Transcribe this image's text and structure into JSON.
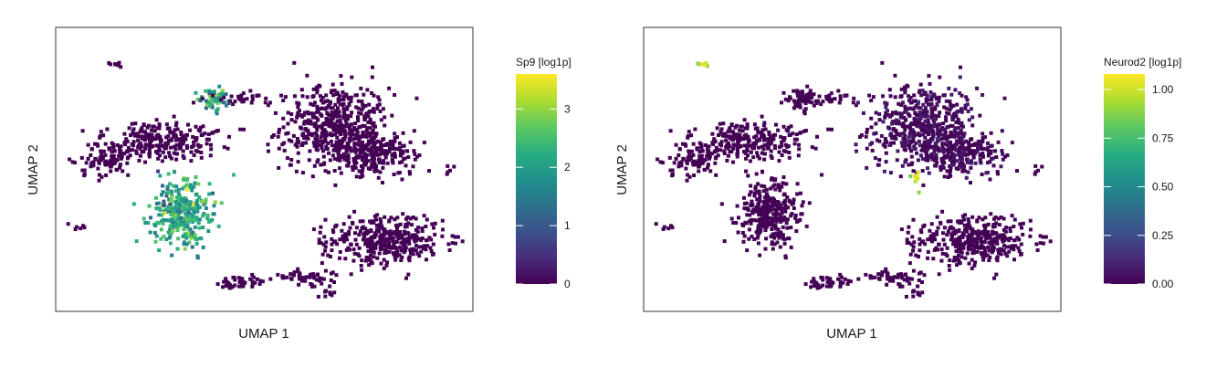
{
  "panels": [
    {
      "x_label": "UMAP 1",
      "y_label": "UMAP 2",
      "colorbar": {
        "title": "Sp9 [log1p]",
        "min": 0,
        "max": 3.6,
        "ticks": [
          {
            "value": 0,
            "label": "0"
          },
          {
            "value": 1,
            "label": "1"
          },
          {
            "value": 2,
            "label": "2"
          },
          {
            "value": 3,
            "label": "3"
          }
        ],
        "colormap": "viridis"
      }
    },
    {
      "x_label": "UMAP 1",
      "y_label": "UMAP 2",
      "colorbar": {
        "title": "Neurod2 [log1p]",
        "min": 0,
        "max": 1.08,
        "ticks": [
          {
            "value": 0,
            "label": "0.00"
          },
          {
            "value": 0.25,
            "label": "0.25"
          },
          {
            "value": 0.5,
            "label": "0.50"
          },
          {
            "value": 0.75,
            "label": "0.75"
          },
          {
            "value": 1,
            "label": "1.00"
          }
        ],
        "colormap": "viridis"
      }
    }
  ],
  "chart_data": [
    {
      "type": "scatter",
      "xlabel": "UMAP 1",
      "ylabel": "UMAP 2",
      "xlim": [
        0,
        100
      ],
      "ylim": [
        0,
        100
      ],
      "grid": false,
      "color_variable": "Sp9 [log1p]",
      "color_range": [
        0,
        3.6
      ],
      "clusters": [
        {
          "x": 67,
          "y": 65,
          "sx": 6.5,
          "sy": 7.5,
          "n": 520,
          "value": 0.0,
          "spread": 0.02
        },
        {
          "x": 77,
          "y": 55,
          "sx": 5.5,
          "sy": 3.5,
          "n": 200,
          "value": 0.0,
          "spread": 0.02
        },
        {
          "x": 79,
          "y": 25,
          "sx": 7.0,
          "sy": 4.5,
          "n": 360,
          "value": 0.0,
          "spread": 0.02
        },
        {
          "x": 25,
          "y": 60,
          "sx": 7.0,
          "sy": 3.5,
          "n": 240,
          "value": 0.0,
          "spread": 0.02
        },
        {
          "x": 12,
          "y": 53,
          "sx": 3.0,
          "sy": 3.0,
          "n": 90,
          "value": 0.0,
          "spread": 0.02
        },
        {
          "x": 30,
          "y": 35,
          "sx": 3.5,
          "sy": 6.0,
          "n": 300,
          "value": 2.1,
          "spread": 0.5
        },
        {
          "x": 38,
          "y": 75,
          "sx": 1.6,
          "sy": 2.4,
          "n": 70,
          "value": 2.0,
          "spread": 0.6
        },
        {
          "x": 44,
          "y": 10,
          "sx": 4.0,
          "sy": 1.2,
          "n": 40,
          "value": 0.0,
          "spread": 0.02
        },
        {
          "x": 60,
          "y": 12,
          "sx": 3.5,
          "sy": 1.5,
          "n": 50,
          "value": 0.0,
          "spread": 0.02
        },
        {
          "x": 45,
          "y": 75,
          "sx": 4.5,
          "sy": 1.0,
          "n": 28,
          "value": 0.0,
          "spread": 0.02
        },
        {
          "x": 14,
          "y": 87,
          "sx": 1.0,
          "sy": 0.6,
          "n": 8,
          "value": 0.0,
          "spread": 0.02
        },
        {
          "x": 5,
          "y": 30,
          "sx": 1.0,
          "sy": 0.6,
          "n": 6,
          "value": 0.0,
          "spread": 0.02
        },
        {
          "x": 94,
          "y": 50,
          "sx": 0.8,
          "sy": 0.6,
          "n": 5,
          "value": 0.0,
          "spread": 0.02
        },
        {
          "x": 66,
          "y": 6,
          "sx": 1.2,
          "sy": 0.8,
          "n": 9,
          "value": 0.0,
          "spread": 0.02
        }
      ]
    },
    {
      "type": "scatter",
      "xlabel": "UMAP 1",
      "ylabel": "UMAP 2",
      "xlim": [
        0,
        100
      ],
      "ylim": [
        0,
        100
      ],
      "grid": false,
      "color_variable": "Neurod2 [log1p]",
      "color_range": [
        0,
        1.08
      ],
      "clusters": [
        {
          "x": 67,
          "y": 65,
          "sx": 6.5,
          "sy": 7.5,
          "n": 520,
          "value": 0.02,
          "spread": 0.04
        },
        {
          "x": 77,
          "y": 55,
          "sx": 5.5,
          "sy": 3.5,
          "n": 200,
          "value": 0.02,
          "spread": 0.04
        },
        {
          "x": 79,
          "y": 25,
          "sx": 7.0,
          "sy": 4.5,
          "n": 360,
          "value": 0.0,
          "spread": 0.01
        },
        {
          "x": 25,
          "y": 60,
          "sx": 7.0,
          "sy": 3.5,
          "n": 240,
          "value": 0.0,
          "spread": 0.01
        },
        {
          "x": 12,
          "y": 53,
          "sx": 3.0,
          "sy": 3.0,
          "n": 90,
          "value": 0.0,
          "spread": 0.01
        },
        {
          "x": 30,
          "y": 35,
          "sx": 3.5,
          "sy": 6.0,
          "n": 300,
          "value": 0.0,
          "spread": 0.01
        },
        {
          "x": 38,
          "y": 75,
          "sx": 1.6,
          "sy": 2.4,
          "n": 70,
          "value": 0.0,
          "spread": 0.01
        },
        {
          "x": 44,
          "y": 10,
          "sx": 4.0,
          "sy": 1.2,
          "n": 40,
          "value": 0.0,
          "spread": 0.01
        },
        {
          "x": 60,
          "y": 12,
          "sx": 3.5,
          "sy": 1.5,
          "n": 50,
          "value": 0.0,
          "spread": 0.01
        },
        {
          "x": 45,
          "y": 75,
          "sx": 4.5,
          "sy": 1.0,
          "n": 28,
          "value": 0.0,
          "spread": 0.01
        },
        {
          "x": 14,
          "y": 87,
          "sx": 0.8,
          "sy": 0.4,
          "n": 8,
          "value": 0.95,
          "spread": 0.1
        },
        {
          "x": 5,
          "y": 30,
          "sx": 1.0,
          "sy": 0.6,
          "n": 6,
          "value": 0.0,
          "spread": 0.01
        },
        {
          "x": 94,
          "y": 50,
          "sx": 0.8,
          "sy": 0.6,
          "n": 5,
          "value": 0.0,
          "spread": 0.01
        },
        {
          "x": 66,
          "y": 6,
          "sx": 1.2,
          "sy": 0.8,
          "n": 9,
          "value": 0.0,
          "spread": 0.01
        },
        {
          "x": 65,
          "y": 47,
          "sx": 0.6,
          "sy": 1.5,
          "n": 10,
          "value": 0.95,
          "spread": 0.1
        }
      ]
    }
  ]
}
